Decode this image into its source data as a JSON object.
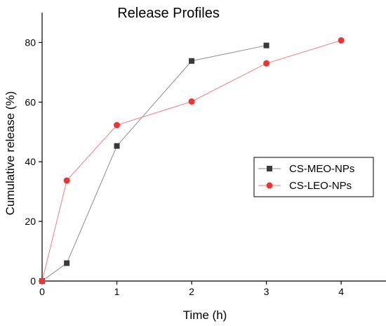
{
  "chart_data": {
    "type": "line",
    "title": "Release Profiles",
    "xlabel": "Time (h)",
    "ylabel": "Cumulative release (%)",
    "xlim": [
      0,
      4.6
    ],
    "ylim": [
      0,
      90
    ],
    "xticks": [
      0,
      1,
      2,
      3,
      4
    ],
    "yticks": [
      0,
      20,
      40,
      60,
      80
    ],
    "grid": false,
    "legend_position": "right",
    "series": [
      {
        "name": "CS-MEO-NPs",
        "color": "#3a3a3a",
        "line_color": "#8c8c8c",
        "marker": "square",
        "x": [
          0,
          0.33,
          1,
          2,
          3
        ],
        "y": [
          0,
          6,
          45.3,
          73.8,
          79
        ]
      },
      {
        "name": "CS-LEO-NPs",
        "color": "#ee3333",
        "line_color": "#f08080",
        "marker": "circle",
        "x": [
          0,
          0.33,
          1,
          2,
          3,
          4
        ],
        "y": [
          0,
          33.7,
          52.3,
          60.2,
          73,
          80.7
        ]
      }
    ]
  }
}
